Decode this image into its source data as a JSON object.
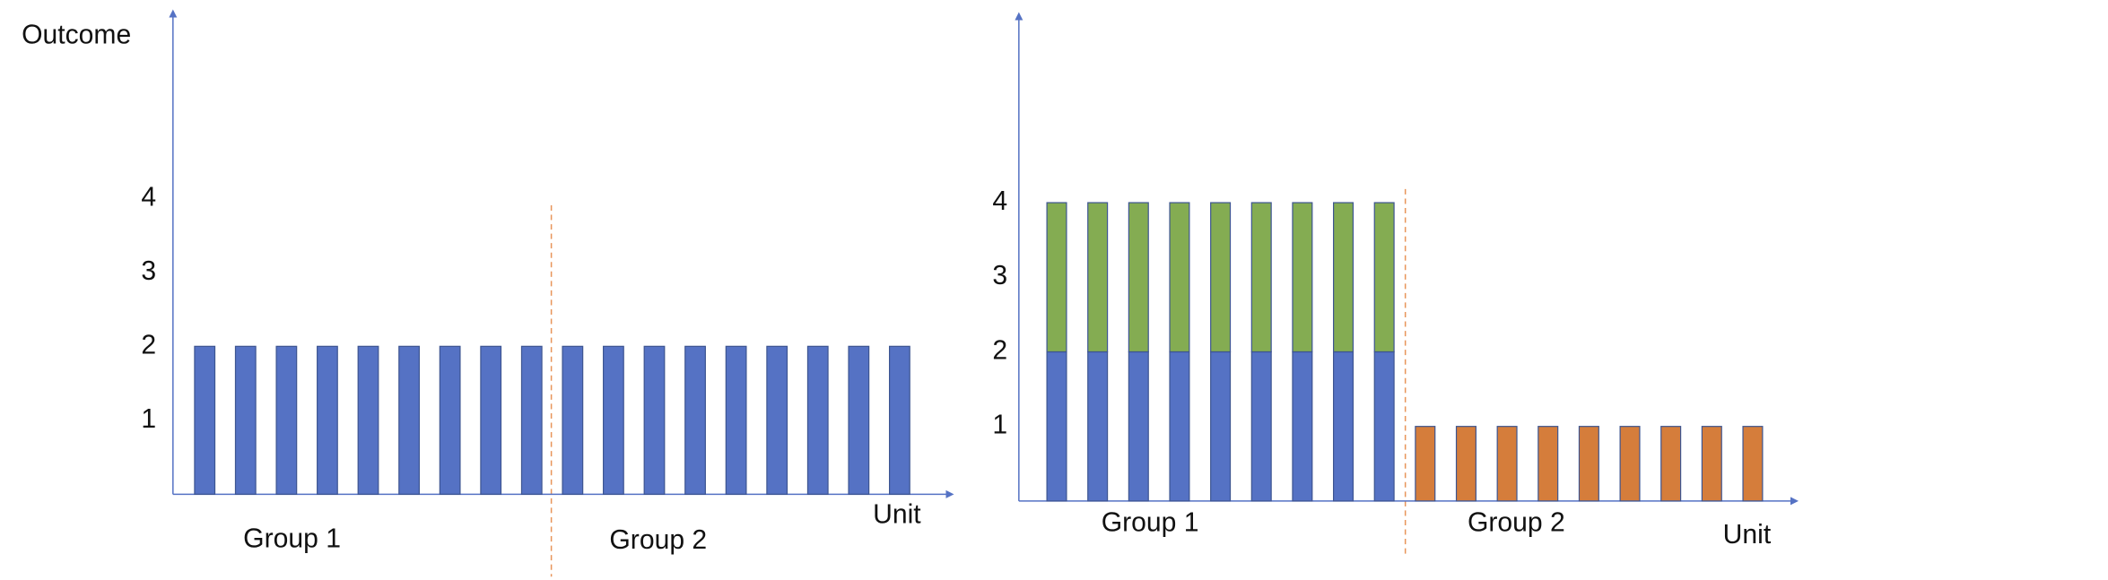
{
  "chart_data": [
    {
      "type": "bar",
      "y_label": "Outcome",
      "x_label": "Unit",
      "annotations": [
        "Group 1",
        "Group 2"
      ],
      "categories": [
        null,
        null,
        null,
        null,
        null,
        null,
        null,
        null,
        null,
        null,
        null,
        null,
        null,
        null,
        null,
        null,
        null,
        null
      ],
      "series": [
        {
          "color": "#5572c4",
          "values": [
            2,
            2,
            2,
            2,
            2,
            2,
            2,
            2,
            2,
            2,
            2,
            2,
            2,
            2,
            2,
            2,
            2,
            2
          ]
        }
      ],
      "ylim": [
        0,
        6.5
      ],
      "yticks": [
        1,
        2,
        3,
        4
      ]
    },
    {
      "type": "stacked_bar",
      "x_label": "Unit",
      "annotations": [
        "Group 1",
        "Group 2"
      ],
      "categories": [
        null,
        null,
        null,
        null,
        null,
        null,
        null,
        null,
        null,
        null,
        null,
        null,
        null,
        null,
        null,
        null,
        null,
        null
      ],
      "series": [
        {
          "color": "#5572c4",
          "values": [
            2,
            2,
            2,
            2,
            2,
            2,
            2,
            2,
            2,
            null,
            null,
            null,
            null,
            null,
            null,
            null,
            null,
            null
          ]
        },
        {
          "color": "#84ac52",
          "values": [
            2,
            2,
            2,
            2,
            2,
            2,
            2,
            2,
            2,
            null,
            null,
            null,
            null,
            null,
            null,
            null,
            null,
            null
          ]
        },
        {
          "color": "#d57d3b",
          "values": [
            null,
            null,
            null,
            null,
            null,
            null,
            null,
            null,
            null,
            1,
            1,
            1,
            1,
            1,
            1,
            1,
            1,
            1
          ]
        }
      ],
      "ylim": [
        0,
        6.5
      ],
      "yticks": [
        1,
        2,
        3,
        4
      ]
    }
  ]
}
